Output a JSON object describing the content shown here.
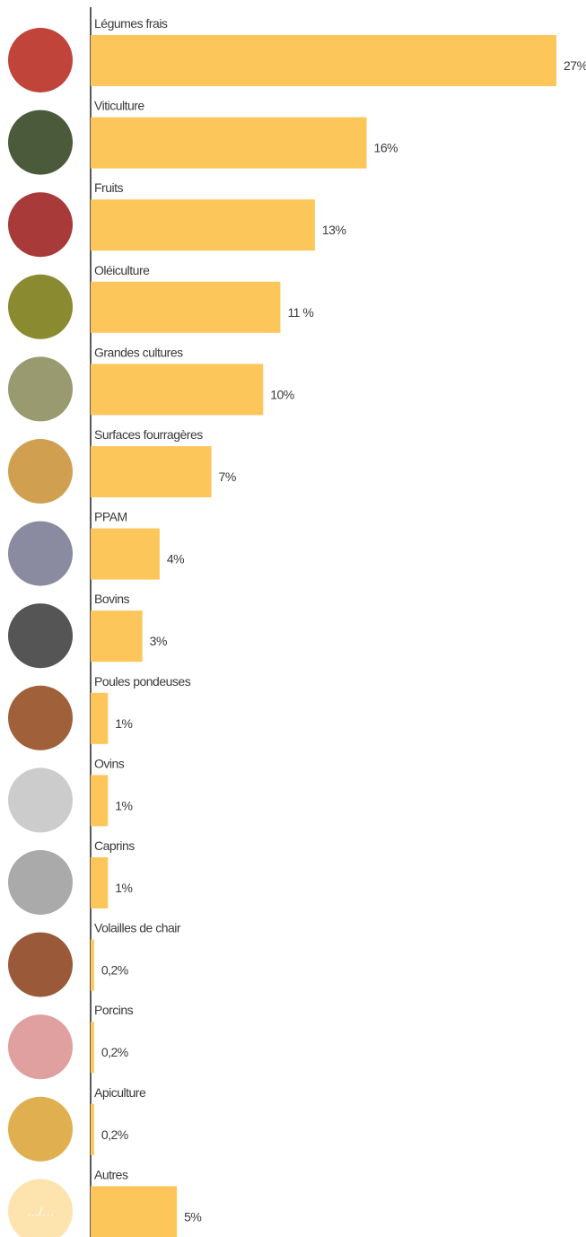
{
  "chart_data": {
    "type": "bar",
    "orientation": "horizontal",
    "categories": [
      "Légumes frais",
      "Viticulture",
      "Fruits",
      "Oléiculture",
      "Grandes cultures",
      "Surfaces fourragères",
      "PPAM",
      "Bovins",
      "Poules pondeuses",
      "Ovins",
      "Caprins",
      "Volailles de chair",
      "Porcins",
      "Apiculture",
      "Autres"
    ],
    "values": [
      27,
      16,
      13,
      11,
      10,
      7,
      4,
      3,
      1,
      1,
      1,
      0.2,
      0.2,
      0.2,
      5
    ],
    "value_labels": [
      "27%",
      "16%",
      "13%",
      "11 %",
      "10%",
      "7%",
      "4%",
      "3%",
      "1%",
      "1%",
      "1%",
      "0,2%",
      "0,2%",
      "0,2%",
      "5%"
    ],
    "color": "#fdc65a",
    "other_icon_label": "…/…"
  }
}
